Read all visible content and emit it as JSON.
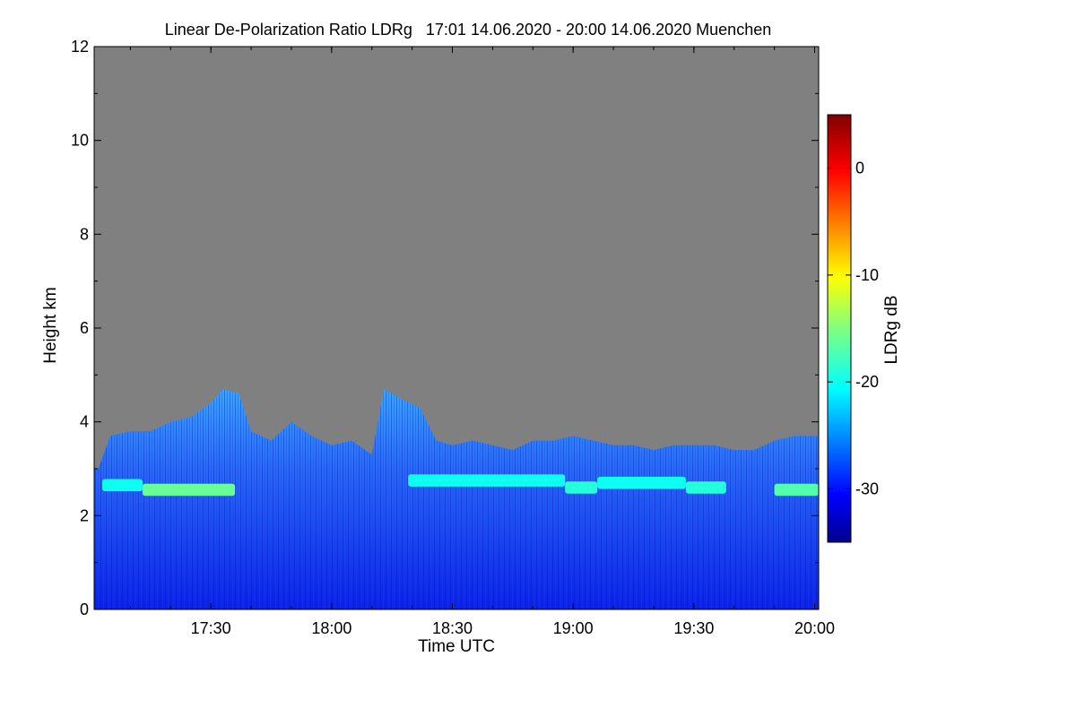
{
  "chart_data": {
    "type": "heatmap",
    "title": "Linear De-Polarization Ratio LDRg   17:01 14.06.2020 - 20:00 14.06.2020 Muenchen",
    "xlabel": "Time UTC",
    "ylabel": "Height km",
    "colorbar_label": "LDRg dB",
    "xlim": [
      "17:01",
      "20:01"
    ],
    "ylim": [
      0,
      12
    ],
    "x_ticks": [
      "17:30",
      "18:00",
      "18:30",
      "19:00",
      "19:30",
      "20:00"
    ],
    "y_ticks": [
      "0",
      "2",
      "4",
      "6",
      "8",
      "10",
      "12"
    ],
    "colorbar_range": [
      -35,
      5
    ],
    "colorbar_ticks": [
      "0",
      "-10",
      "-20",
      "-30"
    ],
    "colormap": "jet",
    "background_color": "#808080",
    "cloud_top_km": [
      {
        "time": "17:02",
        "top": 3.0
      },
      {
        "time": "17:05",
        "top": 3.7
      },
      {
        "time": "17:10",
        "top": 3.8
      },
      {
        "time": "17:15",
        "top": 3.8
      },
      {
        "time": "17:20",
        "top": 4.0
      },
      {
        "time": "17:25",
        "top": 4.1
      },
      {
        "time": "17:30",
        "top": 4.4
      },
      {
        "time": "17:33",
        "top": 4.7
      },
      {
        "time": "17:37",
        "top": 4.6
      },
      {
        "time": "17:40",
        "top": 3.8
      },
      {
        "time": "17:45",
        "top": 3.6
      },
      {
        "time": "17:50",
        "top": 4.0
      },
      {
        "time": "17:55",
        "top": 3.7
      },
      {
        "time": "18:00",
        "top": 3.5
      },
      {
        "time": "18:05",
        "top": 3.6
      },
      {
        "time": "18:10",
        "top": 3.3
      },
      {
        "time": "18:13",
        "top": 4.7
      },
      {
        "time": "18:17",
        "top": 4.5
      },
      {
        "time": "18:22",
        "top": 4.3
      },
      {
        "time": "18:26",
        "top": 3.6
      },
      {
        "time": "18:30",
        "top": 3.5
      },
      {
        "time": "18:35",
        "top": 3.6
      },
      {
        "time": "18:40",
        "top": 3.5
      },
      {
        "time": "18:45",
        "top": 3.4
      },
      {
        "time": "18:50",
        "top": 3.6
      },
      {
        "time": "18:55",
        "top": 3.6
      },
      {
        "time": "19:00",
        "top": 3.7
      },
      {
        "time": "19:05",
        "top": 3.6
      },
      {
        "time": "19:10",
        "top": 3.5
      },
      {
        "time": "19:15",
        "top": 3.5
      },
      {
        "time": "19:20",
        "top": 3.4
      },
      {
        "time": "19:25",
        "top": 3.5
      },
      {
        "time": "19:30",
        "top": 3.5
      },
      {
        "time": "19:35",
        "top": 3.5
      },
      {
        "time": "19:40",
        "top": 3.4
      },
      {
        "time": "19:45",
        "top": 3.4
      },
      {
        "time": "19:50",
        "top": 3.6
      },
      {
        "time": "19:55",
        "top": 3.7
      },
      {
        "time": "20:00",
        "top": 3.7
      }
    ],
    "melting_layer": [
      {
        "start": "17:03",
        "end": "17:13",
        "height_km": 2.65,
        "ldr_db": -20
      },
      {
        "start": "17:13",
        "end": "17:36",
        "height_km": 2.55,
        "ldr_db": -16
      },
      {
        "start": "18:19",
        "end": "18:58",
        "height_km": 2.75,
        "ldr_db": -20
      },
      {
        "start": "18:58",
        "end": "19:06",
        "height_km": 2.6,
        "ldr_db": -19
      },
      {
        "start": "19:06",
        "end": "19:28",
        "height_km": 2.7,
        "ldr_db": -20
      },
      {
        "start": "19:28",
        "end": "19:38",
        "height_km": 2.6,
        "ldr_db": -19
      },
      {
        "start": "19:50",
        "end": "20:01",
        "height_km": 2.55,
        "ldr_db": -17
      }
    ],
    "grid": false,
    "legend": "colorbar right"
  }
}
